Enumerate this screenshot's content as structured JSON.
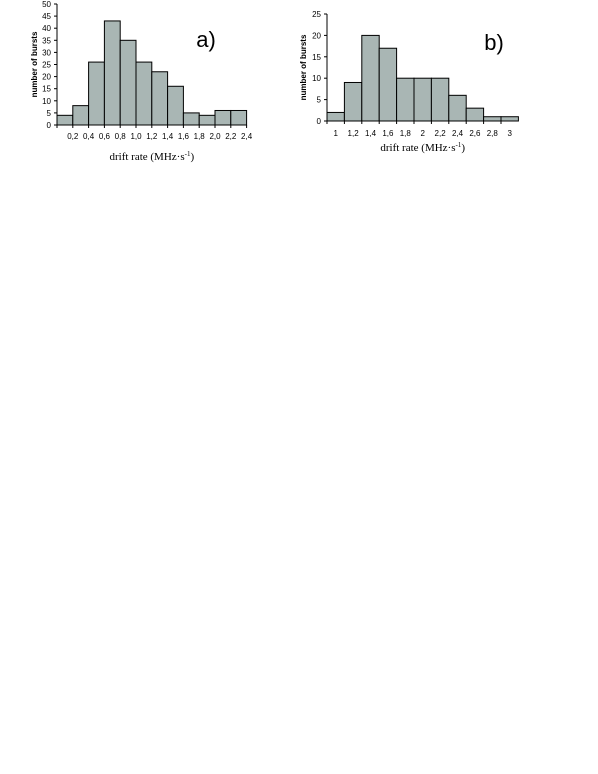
{
  "chart_data": [
    {
      "type": "bar",
      "panel_label": "a)",
      "xlabel": "drift rate (MHz·s",
      "xlabel_sup": "-1",
      "xlabel_close": ")",
      "ylabel": "number of bursts",
      "ylim": [
        0,
        50
      ],
      "yticks": [
        0,
        5,
        10,
        15,
        20,
        25,
        30,
        35,
        40,
        45,
        50
      ],
      "tick_labels": [
        "0,2",
        "0,4",
        "0,6",
        "0,8",
        "1,0",
        "1,2",
        "1,4",
        "1,6",
        "1,8",
        "2,0",
        "2,2",
        "2,4"
      ],
      "values": [
        4,
        8,
        26,
        43,
        35,
        26,
        22,
        16,
        5,
        4,
        6,
        6
      ],
      "bar_color": "#a9b6b4",
      "grid": false
    },
    {
      "type": "bar",
      "panel_label": "b)",
      "xlabel": "drift rate (MHz·s",
      "xlabel_sup": "-1",
      "xlabel_close": ")",
      "ylabel": "number of bursts",
      "ylim": [
        0,
        25
      ],
      "yticks": [
        0,
        5,
        10,
        15,
        20,
        25
      ],
      "tick_labels": [
        "1",
        "1,2",
        "1,4",
        "1,6",
        "1,8",
        "2",
        "2,2",
        "2,4",
        "2,6",
        "2,8",
        "3"
      ],
      "values": [
        2,
        9,
        20,
        17,
        10,
        10,
        10,
        6,
        3,
        1,
        1
      ],
      "bar_color": "#a9b6b4",
      "grid": false
    }
  ]
}
